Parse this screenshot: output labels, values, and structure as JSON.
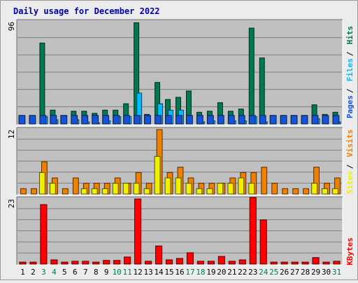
{
  "title": "Daily usage for December 2022",
  "colors": {
    "title": "#0000aa",
    "hits": "#007850",
    "files": "#00bbff",
    "pages": "#1455d8",
    "visits": "#f08000",
    "sites": "#f0f000",
    "kbytes": "#ff0000",
    "weekday": "#000000",
    "weekend": "#007850",
    "panel": "#c0c0c0",
    "grid": "#808080"
  },
  "chart_data": {
    "type": "bar",
    "x": [
      "1",
      "2",
      "3",
      "4",
      "5",
      "6",
      "7",
      "8",
      "9",
      "10",
      "11",
      "12",
      "13",
      "14",
      "15",
      "16",
      "17",
      "18",
      "19",
      "20",
      "21",
      "22",
      "23",
      "24",
      "25",
      "26",
      "27",
      "28",
      "29",
      "30",
      "31"
    ],
    "weekend_days": [
      "3",
      "4",
      "10",
      "11",
      "17",
      "18",
      "24",
      "25",
      "31"
    ],
    "panels": [
      {
        "name": "requests",
        "ymax_label": "96",
        "ymax": 96,
        "legend": [
          "Pages",
          "Files",
          "Hits"
        ],
        "series": [
          {
            "name": "Hits",
            "values": [
              8,
              8,
              76,
              13,
              8,
              12,
              12,
              10,
              13,
              13,
              19,
              95,
              9,
              39,
              23,
              25,
              31,
              11,
              12,
              20,
              12,
              14,
              90,
              62,
              8,
              8,
              8,
              8,
              18,
              9,
              11
            ]
          },
          {
            "name": "Files",
            "values": [
              0,
              0,
              7,
              4,
              0,
              4,
              2,
              1,
              3,
              7,
              7,
              29,
              0,
              19,
              13,
              13,
              0,
              2,
              3,
              0,
              3,
              3,
              7,
              2,
              0,
              0,
              0,
              0,
              5,
              0,
              2
            ]
          },
          {
            "name": "Pages",
            "values": [
              8,
              8,
              8,
              8,
              8,
              8,
              8,
              8,
              8,
              8,
              8,
              8,
              8,
              8,
              8,
              8,
              8,
              8,
              8,
              8,
              8,
              8,
              8,
              8,
              8,
              8,
              8,
              8,
              8,
              8,
              8
            ]
          }
        ]
      },
      {
        "name": "visitors",
        "ymax_label": "12",
        "ymax": 12,
        "legend": [
          "Sites",
          "Visits"
        ],
        "series": [
          {
            "name": "Visits",
            "values": [
              1,
              1,
              6,
              3,
              1,
              3,
              2,
              2,
              2,
              3,
              2,
              4,
              2,
              12,
              4,
              5,
              3,
              2,
              2,
              2,
              3,
              4,
              4,
              5,
              2,
              1,
              1,
              1,
              5,
              2,
              3
            ]
          },
          {
            "name": "Sites",
            "values": [
              0,
              0,
              4,
              2,
              0,
              0,
              1,
              1,
              1,
              2,
              2,
              2,
              1,
              7,
              3,
              3,
              2,
              1,
              1,
              2,
              2,
              3,
              2,
              0,
              0,
              0,
              0,
              0,
              2,
              1,
              1
            ]
          }
        ]
      },
      {
        "name": "volume",
        "ymax_label": "23",
        "ymax": 23,
        "legend": [
          "KBytes"
        ],
        "series": [
          {
            "name": "KBytes",
            "values": [
              0.7,
              0.7,
              21,
              1.5,
              0.7,
              1,
              1,
              0.7,
              1.3,
              1.3,
              2.5,
              23,
              1,
              6.4,
              1.5,
              2,
              4,
              1,
              1,
              2.7,
              1,
              1.5,
              23.5,
              15.6,
              0.7,
              0.7,
              0.7,
              0.7,
              2.3,
              0.7,
              1
            ]
          }
        ]
      }
    ]
  }
}
